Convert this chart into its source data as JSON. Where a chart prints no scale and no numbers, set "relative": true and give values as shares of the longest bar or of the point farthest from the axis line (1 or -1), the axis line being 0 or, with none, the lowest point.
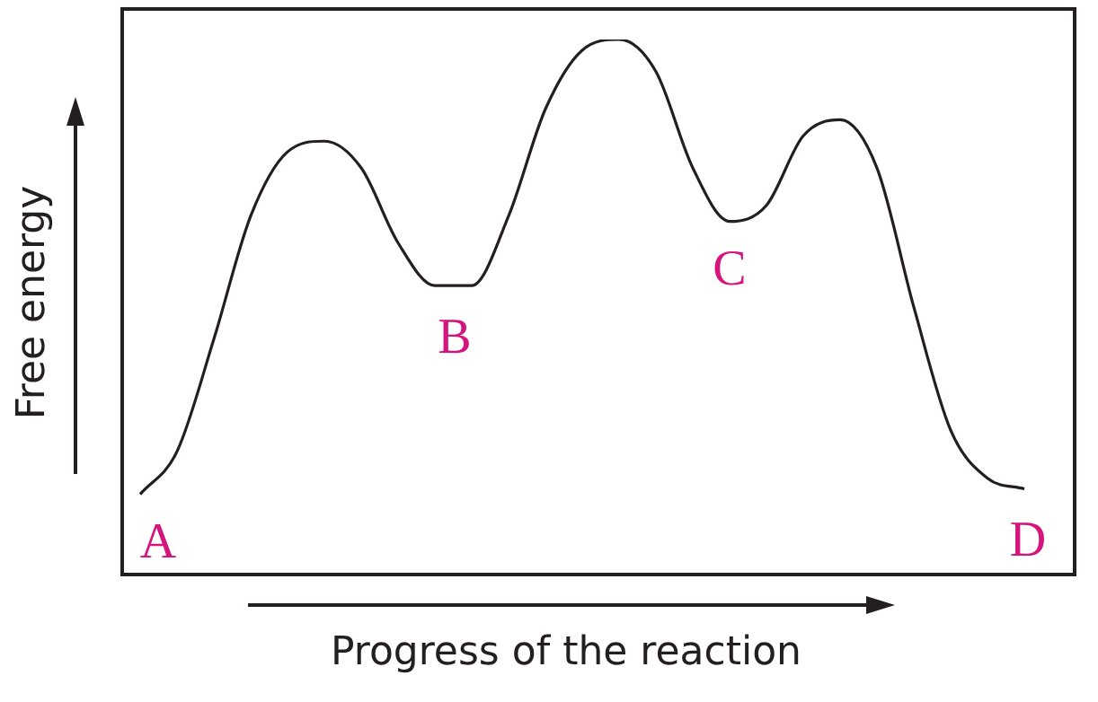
{
  "chart_data": {
    "type": "line",
    "relative": true,
    "xlabel": "Progress of the reaction",
    "ylabel": "Free energy",
    "categories": [
      null,
      null,
      null,
      null,
      null,
      null,
      null,
      null,
      null,
      null,
      null,
      null,
      null,
      null,
      null,
      null,
      null,
      null,
      null,
      null,
      null,
      null,
      null,
      null,
      null
    ],
    "series": [
      {
        "color": "#231f20",
        "values": [
          0.15,
          0.23,
          0.44,
          0.67,
          0.79,
          0.81,
          0.76,
          0.62,
          0.54,
          0.54,
          0.67,
          0.87,
          0.98,
          1,
          0.94,
          0.76,
          0.66,
          0.69,
          0.82,
          0.85,
          0.76,
          0.5,
          0.27,
          0.18,
          0.16
        ]
      }
    ],
    "annotations": [
      "A",
      "B",
      "C",
      "D"
    ],
    "marker": "none",
    "legend": false,
    "tick_labels": false
  }
}
